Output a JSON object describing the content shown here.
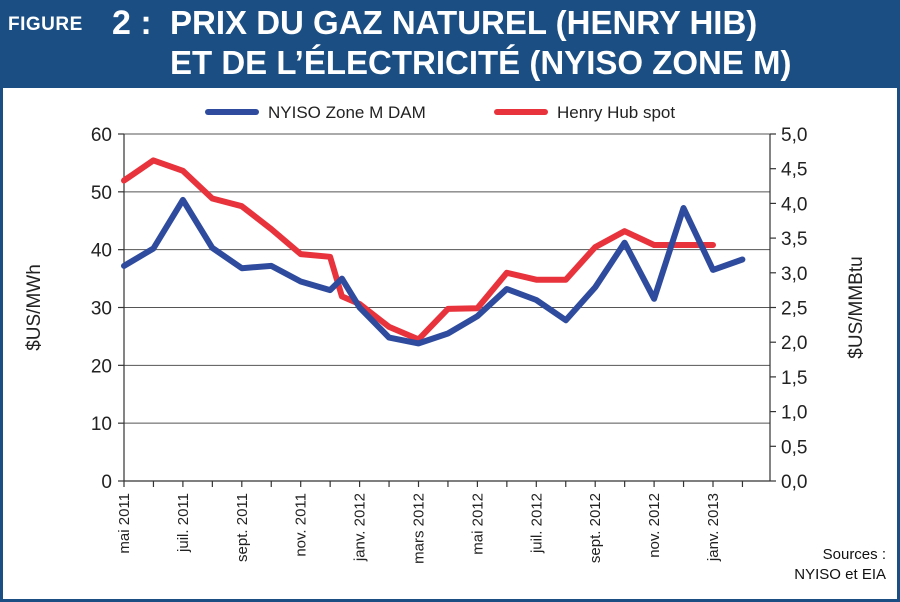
{
  "header": {
    "figure_label": "FIGURE",
    "figure_number": "2 :",
    "title_line1": "PRIX DU GAZ NATUREL (HENRY HIB)",
    "title_line2": "ET DE L’ÉLECTRICITÉ (NYISO ZONE M)"
  },
  "colors": {
    "banner": "#1b4f84",
    "nyiso": "#2e4b9e",
    "henry": "#e8333c",
    "grid": "#555555"
  },
  "sources": {
    "line1": "Sources :",
    "line2": "NYISO et EIA"
  },
  "chart_data": {
    "type": "line",
    "title": "PRIX DU GAZ NATUREL (HENRY HIB) ET DE L’ÉLECTRICITÉ (NYISO ZONE M)",
    "ylabel_left": "$US/MWh",
    "ylabel_right": "$US/MMBtu",
    "ylim_left": [
      0,
      60
    ],
    "ylim_right": [
      0,
      5
    ],
    "yticks_left": [
      "0",
      "10",
      "20",
      "30",
      "40",
      "50",
      "60"
    ],
    "yticks_right": [
      "0,0",
      "0,5",
      "1,0",
      "1,5",
      "2,0",
      "2,5",
      "3,0",
      "3,5",
      "4,0",
      "4,5",
      "5,0"
    ],
    "x": [
      "mai 2011",
      "juin 2011",
      "juil. 2011",
      "août 2011",
      "sept. 2011",
      "oct. 2011",
      "nov. 2011",
      "déc. 2011",
      "janv. 2012",
      "févr. 2012",
      "mars 2012",
      "avr. 2012",
      "mai 2012",
      "juin 2012",
      "juil. 2012",
      "août 2012",
      "sept. 2012",
      "oct. 2012",
      "nov. 2012",
      "déc. 2012",
      "janv. 2013",
      "févr. 2013"
    ],
    "xtick_labels": [
      "mai 2011",
      "juil. 2011",
      "sept. 2011",
      "nov. 2011",
      "janv. 2012",
      "mars 2012",
      "mai 2012",
      "juil. 2012",
      "sept. 2012",
      "nov. 2012",
      "janv. 2013"
    ],
    "grid": "horizontal",
    "legend_position": "top",
    "series": [
      {
        "name": "NYISO Zone M DAM",
        "axis": "left",
        "x": [
          0,
          1,
          2,
          3,
          4,
          5,
          6,
          7,
          7.4,
          8,
          9,
          10,
          11,
          12,
          13,
          14,
          15,
          16,
          17,
          18,
          19,
          20,
          21
        ],
        "values": [
          37.2,
          40.2,
          48.6,
          40.3,
          36.8,
          37.2,
          34.5,
          33.0,
          35.0,
          30.0,
          24.8,
          23.8,
          25.5,
          28.5,
          33.2,
          31.3,
          27.8,
          33.5,
          41.2,
          31.5,
          47.2,
          36.5,
          38.3
        ]
      },
      {
        "name": "Henry Hub spot",
        "axis": "right",
        "x": [
          0,
          1,
          2,
          3,
          4,
          5,
          6,
          7,
          7.4,
          8,
          9,
          10,
          11,
          12,
          13,
          14,
          15,
          16,
          17,
          18,
          19,
          20
        ],
        "values": [
          4.33,
          4.62,
          4.47,
          4.07,
          3.96,
          3.63,
          3.27,
          3.23,
          2.66,
          2.55,
          2.22,
          2.04,
          2.48,
          2.49,
          3.0,
          2.9,
          2.9,
          3.37,
          3.6,
          3.4,
          3.4,
          3.4
        ]
      }
    ]
  }
}
